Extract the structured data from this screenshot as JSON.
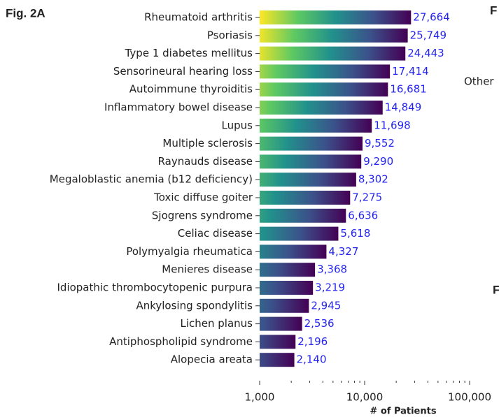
{
  "chart_data": {
    "type": "barh",
    "panel_label": "Fig. 2A",
    "fragments": [
      "F",
      "Other",
      "F"
    ],
    "xlabel": "# of Patients",
    "xscale": "log",
    "categories": [
      "Rheumatoid arthritis",
      "Psoriasis",
      "Type 1 diabetes mellitus",
      "Sensorineural hearing loss",
      "Autoimmune thyroiditis",
      "Inflammatory bowel disease",
      "Lupus",
      "Multiple sclerosis",
      "Raynauds disease",
      "Megaloblastic anemia (b12 deficiency)",
      "Toxic diffuse goiter",
      "Sjogrens syndrome",
      "Celiac disease",
      "Polymyalgia rheumatica",
      "Menieres disease",
      "Idiopathic thrombocytopenic purpura",
      "Ankylosing spondylitis",
      "Lichen planus",
      "Antiphospholipid syndrome",
      "Alopecia areata"
    ],
    "values": [
      27664,
      25749,
      24443,
      17414,
      16681,
      14849,
      11698,
      9552,
      9290,
      8302,
      7275,
      6636,
      5618,
      4327,
      3368,
      3219,
      2945,
      2536,
      2196,
      2140
    ],
    "value_labels": [
      "27,664",
      "25,749",
      "24,443",
      "17,414",
      "16,681",
      "14,849",
      "11,698",
      "9,552",
      "9,290",
      "8,302",
      "7,275",
      "6,636",
      "5,618",
      "4,327",
      "3,368",
      "3,219",
      "2,945",
      "2,536",
      "2,196",
      "2,140"
    ],
    "value_label_color": "#2424f0",
    "colormap": [
      "#440154",
      "#3b528b",
      "#21918c",
      "#5ec962",
      "#fde725"
    ],
    "xlim": [
      1000,
      100000
    ],
    "xticks": [
      {
        "value": 1000,
        "label": "1,000"
      },
      {
        "value": 10000,
        "label": "10,000"
      },
      {
        "value": 100000,
        "label": "100,000"
      }
    ],
    "xminor_ticks": [
      2000,
      3000,
      4000,
      5000,
      6000,
      7000,
      8000,
      9000,
      20000,
      30000,
      40000,
      50000,
      60000,
      70000,
      80000,
      90000
    ]
  }
}
